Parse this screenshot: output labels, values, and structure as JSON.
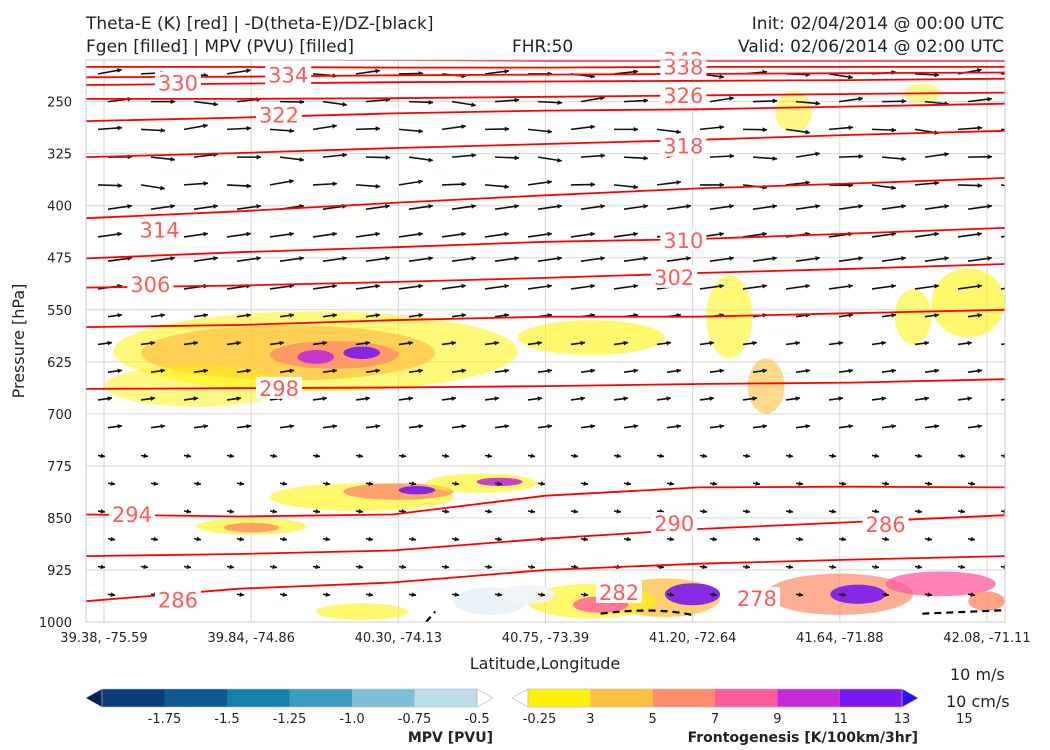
{
  "header": {
    "title_line1": "Theta-E (K) [red] | -D(theta-E)/DZ-[black]",
    "title_line2": "Fgen [filled] | MPV (PVU) [filled]",
    "fhr": "FHR:50",
    "init": "Init: 02/04/2014 @ 00:00 UTC",
    "valid": "Valid: 02/06/2014 @ 02:00 UTC"
  },
  "chart_data": {
    "type": "cross-section",
    "xlabel": "Latitude,Longitude",
    "ylabel": "Pressure [hPa]",
    "x_ticks": [
      "39.38, -75.59",
      "39.84, -74.86",
      "40.30, -74.13",
      "40.75, -73.39",
      "41.20, -72.64",
      "41.64, -71.88",
      "42.08, -71.11"
    ],
    "y_ticks": [
      250,
      325,
      400,
      475,
      550,
      625,
      700,
      775,
      850,
      925,
      1000
    ],
    "ylim": [
      1000,
      190
    ],
    "grid": true,
    "theta_e_labels": [
      {
        "label": "342",
        "x": 0.65,
        "p": 191
      },
      {
        "label": "338",
        "x": 0.65,
        "p": 201
      },
      {
        "label": "334",
        "x": 0.22,
        "p": 212
      },
      {
        "label": "330",
        "x": 0.1,
        "p": 224
      },
      {
        "label": "326",
        "x": 0.65,
        "p": 242
      },
      {
        "label": "322",
        "x": 0.21,
        "p": 270
      },
      {
        "label": "318",
        "x": 0.65,
        "p": 315
      },
      {
        "label": "314",
        "x": 0.08,
        "p": 436
      },
      {
        "label": "310",
        "x": 0.65,
        "p": 451
      },
      {
        "label": "306",
        "x": 0.07,
        "p": 514
      },
      {
        "label": "302",
        "x": 0.64,
        "p": 504
      },
      {
        "label": "298",
        "x": 0.21,
        "p": 664
      },
      {
        "label": "294",
        "x": 0.05,
        "p": 846
      },
      {
        "label": "290",
        "x": 0.64,
        "p": 859
      },
      {
        "label": "286",
        "x": 0.87,
        "p": 860
      },
      {
        "label": "286",
        "x": 0.1,
        "p": 969
      },
      {
        "label": "282",
        "x": 0.58,
        "p": 958
      },
      {
        "label": "278",
        "x": 0.73,
        "p": 967
      }
    ],
    "theta_e_lines": [
      {
        "v": 342,
        "p": [
          189,
          189,
          190,
          191,
          191,
          191,
          191
        ]
      },
      {
        "v": 338,
        "p": [
          200,
          200,
          201,
          201,
          200,
          200,
          200
        ]
      },
      {
        "v": 334,
        "p": [
          215,
          214,
          212,
          211,
          210,
          209,
          208
        ]
      },
      {
        "v": 330,
        "p": [
          226,
          224,
          222,
          221,
          220,
          219,
          217
        ]
      },
      {
        "v": 326,
        "p": [
          246,
          246,
          245,
          243,
          241,
          239,
          237
        ]
      },
      {
        "v": 322,
        "p": [
          278,
          273,
          267,
          263,
          261,
          257,
          253
        ]
      },
      {
        "v": 318,
        "p": [
          330,
          324,
          317,
          311,
          305,
          298,
          292
        ]
      },
      {
        "v": 314,
        "p": [
          418,
          408,
          396,
          385,
          375,
          368,
          360
        ]
      },
      {
        "v": 310,
        "p": [
          476,
          467,
          460,
          452,
          448,
          440,
          432
        ]
      },
      {
        "v": 306,
        "p": [
          518,
          515,
          510,
          504,
          497,
          491,
          484
        ]
      },
      {
        "v": 302,
        "p": [
          575,
          572,
          565,
          560,
          560,
          555,
          550
        ]
      },
      {
        "v": 298,
        "p": [
          664,
          663,
          662,
          660,
          657,
          655,
          650
        ]
      },
      {
        "v": 294,
        "p": [
          845,
          848,
          845,
          818,
          806,
          805,
          806
        ]
      },
      {
        "v": 290,
        "p": [
          905,
          902,
          897,
          880,
          866,
          856,
          846
        ]
      },
      {
        "v": 286,
        "p": [
          970,
          952,
          943,
          925,
          916,
          910,
          905
        ]
      }
    ],
    "wind_reference": {
      "line1": "10 m/s",
      "line2": "10 cm/s"
    },
    "colorbars": [
      {
        "title": "MPV [PVU]",
        "ticks": [
          "-1.75",
          "-1.5",
          "-1.25",
          "-1.0",
          "-0.75",
          "-0.5",
          "-0.25"
        ],
        "colors": [
          "#08205a",
          "#0b3c7a",
          "#0f5a94",
          "#177fab",
          "#3b9ec1",
          "#7cbfd6",
          "#bfdde8",
          "#ffffff"
        ]
      },
      {
        "title": "Frontogenesis [K/100km/3hr]",
        "ticks": [
          "3",
          "5",
          "7",
          "9",
          "11",
          "13",
          "15"
        ],
        "colors": [
          "#ffffff",
          "#fff20a",
          "#ffbf40",
          "#ff8c6a",
          "#ff5aa0",
          "#c32bd8",
          "#7a1af0",
          "#2a10ff"
        ]
      }
    ]
  },
  "style": {
    "theta_e_color": "#ff0000",
    "theta_e_label_color": "#ff5a5a",
    "arrow_color": "#111111",
    "grid_color": "#d6d6d6"
  }
}
